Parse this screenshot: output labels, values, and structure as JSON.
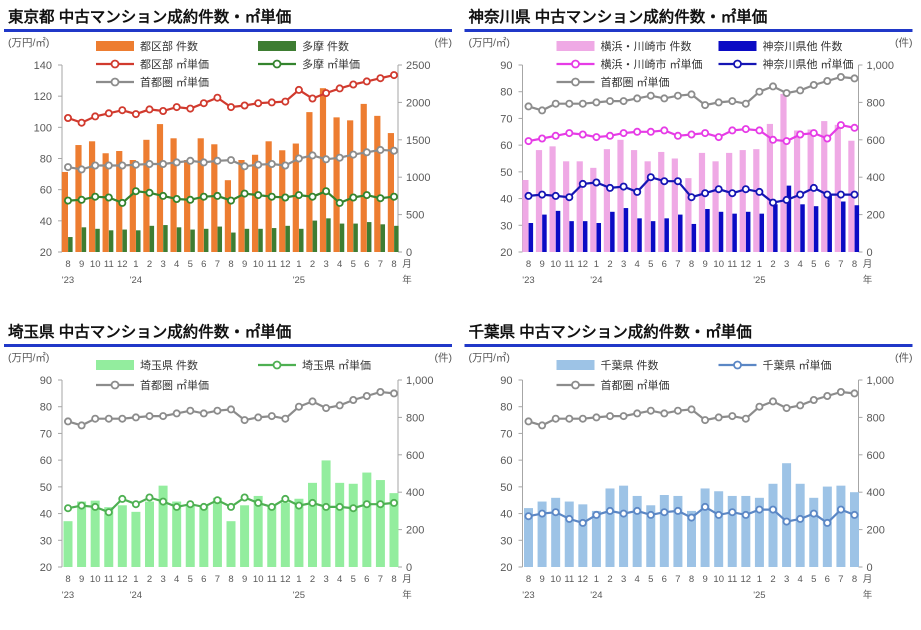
{
  "page_title": "中古マンション成約件数・㎡単価",
  "styles": {
    "title_rule_color": "#2038C8",
    "axis_text_color": "#595959",
    "legend_text_color": "#333333",
    "axis_line_color": "#A6A6A6",
    "background": "#FFFFFF"
  },
  "chart_data": {
    "type": "bar+line",
    "x_axis": {
      "months": [
        "8",
        "9",
        "10",
        "11",
        "12",
        "1",
        "2",
        "3",
        "4",
        "5",
        "6",
        "7",
        "8",
        "9",
        "10",
        "11",
        "12",
        "1",
        "2",
        "3",
        "4",
        "5",
        "6",
        "7",
        "8"
      ],
      "month_unit": "月",
      "year_unit": "年",
      "years": [
        {
          "at": 0,
          "label": "'23"
        },
        {
          "at": 5,
          "label": "'24"
        },
        {
          "at": 17,
          "label": "'25"
        }
      ]
    },
    "charts": [
      {
        "id": "tokyo",
        "title": "東京都 中古マンション成約件数・㎡単価",
        "left_axis": {
          "unit": "(万円/㎡)",
          "min": 20,
          "max": 140,
          "ticks": [
            "140",
            "120",
            "100",
            "80",
            "60",
            "40",
            "20"
          ]
        },
        "right_axis": {
          "unit": "(件)",
          "min": 0,
          "max": 2500,
          "ticks": [
            "2500",
            "2000",
            "1500",
            "1000",
            "500",
            "0"
          ]
        },
        "bar_series": [
          {
            "key": "tokubu-kensu",
            "name": "都区部 件数",
            "color": "#ED7D31",
            "values": [
              1070,
              1430,
              1480,
              1320,
              1350,
              1230,
              1500,
              1710,
              1520,
              1230,
              1520,
              1440,
              960,
              1230,
              1300,
              1480,
              1360,
              1450,
              1870,
              2190,
              1800,
              1760,
              1980,
              1820,
              1590
            ]
          },
          {
            "key": "tama-kensu",
            "name": "多摩 件数",
            "color": "#3E7D32",
            "values": [
              200,
              330,
              310,
              290,
              300,
              290,
              350,
              360,
              330,
              300,
              310,
              340,
              260,
              310,
              310,
              320,
              350,
              310,
              420,
              450,
              380,
              380,
              400,
              370,
              350
            ]
          }
        ],
        "line_series": [
          {
            "key": "tokubu-tanka",
            "name": "都区部 ㎡単価",
            "color": "#D13A2E",
            "values": [
              106,
              103,
              107,
              109,
              111,
              108.5,
              111.5,
              110.5,
              113,
              112,
              115.5,
              119,
              113,
              114,
              115.5,
              116,
              116.5,
              124,
              118.5,
              122,
              125,
              127.5,
              129.5,
              131.5,
              133.5
            ]
          },
          {
            "key": "tama-tanka",
            "name": "多摩 ㎡単価",
            "color": "#34842E",
            "values": [
              53,
              53.5,
              55.5,
              55,
              51.5,
              59,
              58,
              56,
              54,
              53.5,
              55.5,
              56,
              53,
              57.5,
              56.5,
              55.5,
              55,
              56.5,
              55.5,
              59,
              51.5,
              55,
              56.5,
              54.5,
              55.5
            ]
          },
          {
            "key": "shutoken-tanka",
            "name": "首都圏 ㎡単価",
            "color": "#8C8C8C",
            "values": [
              74.5,
              73,
              75.5,
              75.5,
              75.5,
              76,
              76.5,
              76.5,
              77.5,
              78.5,
              77.5,
              78.5,
              79,
              75,
              76,
              76.5,
              75.5,
              80,
              82,
              79.5,
              80.5,
              82.5,
              84,
              85.5,
              85
            ]
          }
        ]
      },
      {
        "id": "kanagawa",
        "title": "神奈川県 中古マンション成約件数・㎡単価",
        "left_axis": {
          "unit": "(万円/㎡)",
          "min": 20,
          "max": 90,
          "ticks": [
            "90",
            "80",
            "70",
            "60",
            "50",
            "40",
            "30",
            "20"
          ]
        },
        "right_axis": {
          "unit": "(件)",
          "min": 0,
          "max": 1000,
          "ticks": [
            "1,000",
            "800",
            "600",
            "400",
            "200",
            "0"
          ]
        },
        "bar_series": [
          {
            "key": "yokohama-kawasaki-kensu",
            "name": "横浜・川崎市 件数",
            "color": "#EFA9E5",
            "values": [
              385,
              545,
              565,
              485,
              485,
              450,
              550,
              600,
              545,
              485,
              535,
              500,
              395,
              530,
              485,
              530,
              545,
              550,
              685,
              845,
              650,
              655,
              700,
              680,
              595
            ]
          },
          {
            "key": "kanagawa-other-kensu",
            "name": "神奈川県他 件数",
            "color": "#0B0BC4",
            "values": [
              155,
              200,
              220,
              165,
              165,
              155,
              215,
              235,
              180,
              165,
              180,
              200,
              150,
              230,
              215,
              205,
              215,
              205,
              255,
              355,
              255,
              245,
              310,
              270,
              250
            ]
          }
        ],
        "line_series": [
          {
            "key": "yokohama-kawasaki-tanka",
            "name": "横浜・川崎市 ㎡単価",
            "color": "#E63CE6",
            "values": [
              61.5,
              62.5,
              63.5,
              64.5,
              64,
              63,
              63.5,
              64.5,
              65,
              65,
              65.5,
              63.5,
              64,
              64.5,
              63,
              65.5,
              66,
              65.5,
              62,
              61.5,
              64,
              64.5,
              62.5,
              67.5,
              66.5
            ]
          },
          {
            "key": "kanagawa-other-tanka",
            "name": "神奈川県他 ㎡単価",
            "color": "#1515B4",
            "values": [
              41,
              41.5,
              41,
              40.5,
              45.5,
              46,
              44,
              44.5,
              42.5,
              48,
              46.5,
              46.5,
              40.5,
              42,
              43.5,
              42,
              43.5,
              42.5,
              38.5,
              39.5,
              41.5,
              44,
              41.5,
              41.5,
              41.5
            ]
          },
          {
            "key": "shutoken-tanka",
            "name": "首都圏 ㎡単価",
            "color": "#8C8C8C",
            "values": [
              74.5,
              73,
              75.5,
              75.5,
              75.5,
              76,
              76.5,
              76.5,
              77.5,
              78.5,
              77.5,
              78.5,
              79,
              75,
              76,
              76.5,
              75.5,
              80,
              82,
              79.5,
              80.5,
              82.5,
              84,
              85.5,
              85
            ]
          }
        ]
      },
      {
        "id": "saitama",
        "title": "埼玉県 中古マンション成約件数・㎡単価",
        "left_axis": {
          "unit": "(万円/㎡)",
          "min": 20,
          "max": 90,
          "ticks": [
            "90",
            "80",
            "70",
            "60",
            "50",
            "40",
            "30",
            "20"
          ]
        },
        "right_axis": {
          "unit": "(件)",
          "min": 0,
          "max": 1000,
          "ticks": [
            "1,000",
            "800",
            "600",
            "400",
            "200",
            "0"
          ]
        },
        "bar_series": [
          {
            "key": "saitama-kensu",
            "name": "埼玉県 件数",
            "color": "#93ED9E",
            "values": [
              245,
              350,
              355,
              320,
              330,
              295,
              350,
              435,
              350,
              335,
              330,
              370,
              245,
              330,
              380,
              330,
              345,
              365,
              450,
              570,
              450,
              445,
              505,
              465,
              395
            ]
          }
        ],
        "line_series": [
          {
            "key": "saitama-tanka",
            "name": "埼玉県 ㎡単価",
            "color": "#4EB052",
            "values": [
              42,
              43,
              42.5,
              40.5,
              45.5,
              43.5,
              46,
              44.5,
              42.5,
              43.5,
              42.5,
              45,
              42.5,
              46,
              44,
              42.5,
              45.5,
              43,
              44,
              42.5,
              42.5,
              42,
              43.5,
              43.5,
              44
            ]
          },
          {
            "key": "shutoken-tanka",
            "name": "首都圏 ㎡単価",
            "color": "#8C8C8C",
            "values": [
              74.5,
              73,
              75.5,
              75.5,
              75.5,
              76,
              76.5,
              76.5,
              77.5,
              78.5,
              77.5,
              78.5,
              79,
              75,
              76,
              76.5,
              75.5,
              80,
              82,
              79.5,
              80.5,
              82.5,
              84,
              85.5,
              85
            ]
          }
        ]
      },
      {
        "id": "chiba",
        "title": "千葉県 中古マンション成約件数・㎡単価",
        "left_axis": {
          "unit": "(万円/㎡)",
          "min": 20,
          "max": 90,
          "ticks": [
            "90",
            "80",
            "70",
            "60",
            "50",
            "40",
            "30",
            "20"
          ]
        },
        "right_axis": {
          "unit": "(件)",
          "min": 0,
          "max": 1000,
          "ticks": [
            "1,000",
            "800",
            "600",
            "400",
            "200",
            "0"
          ]
        },
        "bar_series": [
          {
            "key": "chiba-kensu",
            "name": "千葉県 件数",
            "color": "#9DC3E6",
            "values": [
              315,
              350,
              370,
              350,
              335,
              300,
              420,
              435,
              380,
              330,
              385,
              380,
              300,
              420,
              405,
              380,
              380,
              370,
              445,
              555,
              445,
              370,
              430,
              435,
              400
            ]
          }
        ],
        "line_series": [
          {
            "key": "chiba-tanka",
            "name": "千葉県 ㎡単価",
            "color": "#5B87C5",
            "values": [
              39,
              40,
              40.5,
              38,
              36.5,
              39.5,
              41,
              40,
              41,
              39.5,
              40.5,
              41,
              38.5,
              42.5,
              39.5,
              40.5,
              39.5,
              41.5,
              41.5,
              37,
              38,
              40,
              36.5,
              41.5,
              39.5
            ]
          },
          {
            "key": "shutoken-tanka",
            "name": "首都圏 ㎡単価",
            "color": "#8C8C8C",
            "values": [
              74.5,
              73,
              75.5,
              75.5,
              75.5,
              76,
              76.5,
              76.5,
              77.5,
              78.5,
              77.5,
              78.5,
              79,
              75,
              76,
              76.5,
              75.5,
              80,
              82,
              79.5,
              80.5,
              82.5,
              84,
              85.5,
              85
            ]
          }
        ]
      }
    ]
  }
}
